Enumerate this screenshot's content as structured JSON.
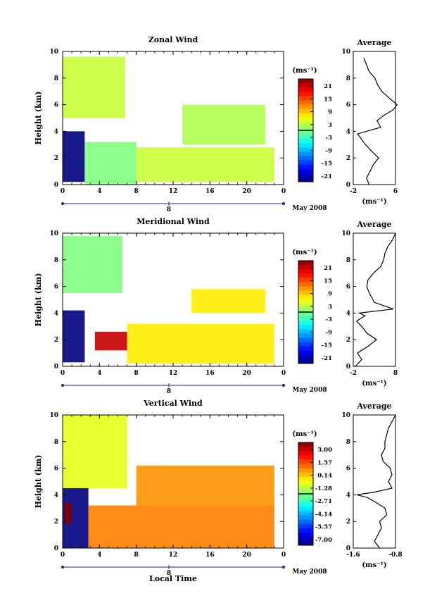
{
  "panels": [
    {
      "id": "zonal",
      "title": "Zonal Wind",
      "ylabel": "Height (km)",
      "x_ticks": [
        "0",
        "4",
        "8",
        "12",
        "16",
        "20",
        "0"
      ],
      "y_ticks": [
        "0",
        "2",
        "4",
        "6",
        "8",
        "10"
      ],
      "date_label": "8",
      "month_label": "May 2008",
      "colorbar_unit": "(ms⁻¹)",
      "colorbar_ticks": [
        "21",
        "15",
        "9",
        "3",
        "-3",
        "-9",
        "-15",
        "-21"
      ],
      "avg_title": "Average",
      "avg_x_ticks": [
        "-2",
        "6"
      ],
      "avg_y_ticks": [
        "0",
        "2",
        "4",
        "6",
        "8",
        "10"
      ],
      "avg_unit": "(ms⁻¹)"
    },
    {
      "id": "meridional",
      "title": "Meridional Wind",
      "ylabel": "Height (km)",
      "x_ticks": [
        "0",
        "4",
        "8",
        "12",
        "16",
        "20",
        "0"
      ],
      "y_ticks": [
        "0",
        "2",
        "4",
        "6",
        "8",
        "10"
      ],
      "date_label": "8",
      "month_label": "May 2008",
      "colorbar_unit": "(ms⁻¹)",
      "colorbar_ticks": [
        "21",
        "15",
        "9",
        "3",
        "-3",
        "-9",
        "-15",
        "-21"
      ],
      "avg_title": "Average",
      "avg_x_ticks": [
        "-2",
        "8"
      ],
      "avg_y_ticks": [
        "0",
        "2",
        "4",
        "6",
        "8",
        "10"
      ],
      "avg_unit": "(ms⁻¹)"
    },
    {
      "id": "vertical",
      "title": "Vertical Wind",
      "ylabel": "Height (km)",
      "x_ticks": [
        "0",
        "4",
        "8",
        "12",
        "16",
        "20",
        "0"
      ],
      "y_ticks": [
        "0",
        "2",
        "4",
        "6",
        "8",
        "10"
      ],
      "date_label": "8",
      "month_label": "May 2008",
      "xlabel": "Local Time",
      "colorbar_unit": "(ms⁻¹)",
      "colorbar_ticks": [
        "3.00",
        "1.57",
        "0.14",
        "-1.28",
        "-2.71",
        "-4.14",
        "-5.57",
        "-7.00"
      ],
      "avg_title": "Average",
      "avg_x_ticks": [
        "-1.6",
        "-0.8"
      ],
      "avg_y_ticks": [
        "0",
        "2",
        "4",
        "6",
        "8",
        "10"
      ],
      "avg_unit": "(ms⁻¹)"
    }
  ],
  "chart_data": [
    {
      "type": "heatmap",
      "title": "Zonal Wind",
      "xlabel": "",
      "ylabel": "Height (km)",
      "xlim": [
        0,
        24
      ],
      "ylim": [
        0,
        10
      ],
      "colorbar": [
        -21,
        21
      ],
      "colormap": "jet",
      "patches": [
        {
          "x": [
            0.0,
            6.8
          ],
          "y": [
            5.0,
            9.6
          ],
          "value": 3
        },
        {
          "x": [
            0.0,
            2.4
          ],
          "y": [
            0.2,
            4.0
          ],
          "value": -21
        },
        {
          "x": [
            2.4,
            8.0
          ],
          "y": [
            0.0,
            3.2
          ],
          "value": 0
        },
        {
          "x": [
            8.0,
            23.0
          ],
          "y": [
            0.2,
            2.8
          ],
          "value": 3
        },
        {
          "x": [
            13.0,
            22.0
          ],
          "y": [
            3.0,
            6.0
          ],
          "value": 2
        }
      ],
      "average_profile": {
        "xlim": [
          -2,
          6
        ],
        "height": [
          0.0,
          0.5,
          1.0,
          1.5,
          2.0,
          2.5,
          3.0,
          3.5,
          3.8,
          4.0,
          4.3,
          4.8,
          5.2,
          5.6,
          6.0,
          6.5,
          7.0,
          7.5,
          8.0,
          8.5,
          9.0,
          9.5
        ],
        "value": [
          1.0,
          0.5,
          1.2,
          1.8,
          2.8,
          1.5,
          0.3,
          -0.6,
          -1.2,
          0.5,
          3.2,
          2.5,
          3.8,
          5.5,
          6.3,
          4.8,
          3.4,
          2.6,
          2.1,
          1.0,
          0.5,
          0.0
        ]
      }
    },
    {
      "type": "heatmap",
      "title": "Meridional Wind",
      "xlabel": "",
      "ylabel": "Height (km)",
      "xlim": [
        0,
        24
      ],
      "ylim": [
        0,
        10
      ],
      "colorbar": [
        -21,
        21
      ],
      "colormap": "jet",
      "patches": [
        {
          "x": [
            0.0,
            6.5
          ],
          "y": [
            5.5,
            9.8
          ],
          "value": 0
        },
        {
          "x": [
            0.0,
            2.4
          ],
          "y": [
            0.3,
            4.2
          ],
          "value": -21
        },
        {
          "x": [
            3.5,
            7.0
          ],
          "y": [
            1.2,
            2.6
          ],
          "value": 18
        },
        {
          "x": [
            7.0,
            23.0
          ],
          "y": [
            0.2,
            3.2
          ],
          "value": 6
        },
        {
          "x": [
            14.0,
            22.0
          ],
          "y": [
            4.0,
            5.8
          ],
          "value": 6
        }
      ],
      "average_profile": {
        "xlim": [
          -2,
          8
        ],
        "height": [
          0.0,
          0.5,
          1.0,
          1.5,
          2.0,
          2.5,
          3.0,
          3.4,
          3.8,
          4.0,
          4.3,
          4.8,
          5.5,
          6.0,
          6.5,
          7.0,
          7.5,
          8.0,
          8.5,
          9.0,
          9.5,
          10.0
        ],
        "value": [
          -1.5,
          0.0,
          -1.0,
          1.5,
          3.5,
          1.2,
          0.0,
          -1.2,
          0.8,
          -0.6,
          7.5,
          3.0,
          1.8,
          1.2,
          1.5,
          2.8,
          4.5,
          5.2,
          5.5,
          6.2,
          7.3,
          8.0
        ]
      }
    },
    {
      "type": "heatmap",
      "title": "Vertical Wind",
      "xlabel": "Local Time",
      "ylabel": "Height (km)",
      "xlim": [
        0,
        24
      ],
      "ylim": [
        0,
        10
      ],
      "colorbar": [
        -7.0,
        3.0
      ],
      "colormap": "jet",
      "patches": [
        {
          "x": [
            0.0,
            7.0
          ],
          "y": [
            4.5,
            10.0
          ],
          "value": -1.0
        },
        {
          "x": [
            0.0,
            2.8
          ],
          "y": [
            0.0,
            4.5
          ],
          "value": -7.0
        },
        {
          "x": [
            2.8,
            23.0
          ],
          "y": [
            0.0,
            3.2
          ],
          "value": 0.5
        },
        {
          "x": [
            8.0,
            23.0
          ],
          "y": [
            3.2,
            6.2
          ],
          "value": 0.3
        },
        {
          "x": [
            0.2,
            1.0
          ],
          "y": [
            1.8,
            3.4
          ],
          "value": 3.0
        }
      ],
      "average_profile": {
        "xlim": [
          -1.8,
          -0.6
        ],
        "height": [
          0.0,
          0.5,
          1.0,
          1.5,
          2.0,
          2.5,
          3.0,
          3.5,
          3.8,
          4.0,
          4.2,
          4.5,
          5.0,
          5.5,
          6.0,
          6.5,
          7.0,
          7.5,
          8.0,
          8.5,
          9.0,
          9.5,
          10.0
        ],
        "value": [
          -1.05,
          -1.2,
          -1.1,
          -1.0,
          -1.05,
          -0.85,
          -0.9,
          -1.2,
          -1.4,
          -1.7,
          -1.2,
          -0.7,
          -0.8,
          -0.7,
          -0.75,
          -0.95,
          -1.0,
          -0.9,
          -0.9,
          -0.85,
          -0.8,
          -0.7,
          -0.6
        ]
      }
    }
  ]
}
